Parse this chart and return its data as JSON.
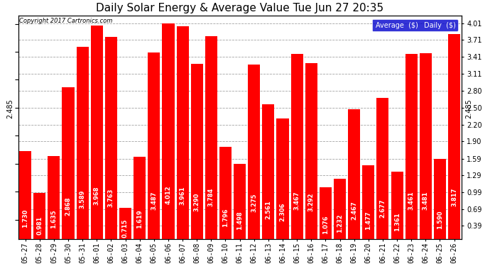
{
  "title": "Daily Solar Energy & Average Value Tue Jun 27 20:35",
  "copyright": "Copyright 2017 Cartronics.com",
  "average_value": 2.485,
  "average_label": "2.485",
  "categories": [
    "05-27",
    "05-28",
    "05-29",
    "05-30",
    "05-31",
    "06-01",
    "06-02",
    "06-03",
    "06-04",
    "06-05",
    "06-06",
    "06-07",
    "06-08",
    "06-09",
    "06-10",
    "06-11",
    "06-12",
    "06-13",
    "06-14",
    "06-15",
    "06-16",
    "06-17",
    "06-18",
    "06-19",
    "06-20",
    "06-21",
    "06-22",
    "06-23",
    "06-24",
    "06-25",
    "06-26"
  ],
  "values": [
    1.73,
    0.981,
    1.635,
    2.868,
    3.589,
    3.968,
    3.763,
    0.715,
    1.619,
    3.487,
    4.012,
    3.961,
    3.29,
    3.784,
    1.796,
    1.498,
    3.275,
    2.561,
    2.306,
    3.467,
    3.292,
    1.076,
    1.232,
    2.467,
    1.477,
    2.677,
    1.361,
    3.461,
    3.481,
    1.59,
    3.817
  ],
  "bar_color": "#ff0000",
  "avg_line_color": "#0000ff",
  "background_color": "#ffffff",
  "grid_color": "#999999",
  "title_fontsize": 11,
  "tick_fontsize": 7,
  "label_fontsize": 6,
  "ylabel_right": [
    "0.39",
    "0.69",
    "0.99",
    "1.29",
    "1.59",
    "1.90",
    "2.20",
    "2.50",
    "2.80",
    "3.11",
    "3.41",
    "3.71",
    "4.01"
  ],
  "yticks_right": [
    0.39,
    0.69,
    0.99,
    1.29,
    1.59,
    1.9,
    2.2,
    2.5,
    2.8,
    3.11,
    3.41,
    3.71,
    4.01
  ],
  "ylim": [
    0.15,
    4.15
  ],
  "last_value_label": "2.485"
}
